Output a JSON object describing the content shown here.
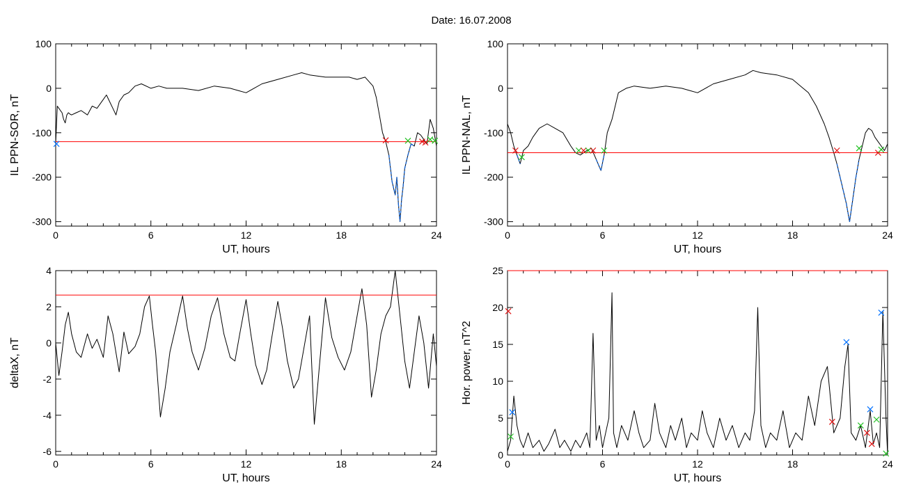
{
  "figure": {
    "title": "Date:  16.07.2008"
  },
  "chart_data": [
    {
      "type": "line",
      "ylabel": "IL PPN-SOR, nT",
      "xlabel": "UT, hours",
      "xlim": [
        0,
        24
      ],
      "ylim": [
        -310,
        100
      ],
      "xticks": [
        "0",
        "6",
        "12",
        "18",
        "24"
      ],
      "xtick_values": [
        0,
        6,
        12,
        18,
        24
      ],
      "yticks": [
        "-300",
        "-200",
        "-100",
        "0",
        "100"
      ],
      "ytick_values": [
        -300,
        -200,
        -100,
        0,
        100
      ],
      "threshold": {
        "value": -120,
        "color": "#ff0000"
      },
      "series": [
        {
          "color": "#000000",
          "x": [
            0.0,
            0.1,
            0.2,
            0.3,
            0.4,
            0.5,
            0.6,
            0.7,
            0.8,
            0.9,
            1.0,
            1.3,
            1.6,
            2.0,
            2.3,
            2.6,
            3.0,
            3.2,
            3.4,
            3.6,
            3.8,
            4.0,
            4.3,
            4.6,
            5.0,
            5.4,
            6.0,
            6.5,
            7.0,
            8.0,
            9.0,
            10.0,
            11.0,
            11.5,
            12.0,
            12.5,
            13.0,
            14.0,
            15.0,
            15.5,
            16.0,
            17.0,
            18.0,
            18.5,
            19.0,
            19.5,
            20.0,
            20.2,
            20.4,
            20.6,
            20.8,
            21.0,
            21.2,
            21.4,
            21.5,
            21.6,
            21.7,
            21.8,
            21.9,
            22.0,
            22.2,
            22.4,
            22.6,
            22.8,
            23.0,
            23.2,
            23.4,
            23.6,
            23.8,
            24.0
          ],
          "y": [
            -125,
            -40,
            -45,
            -50,
            -55,
            -70,
            -78,
            -60,
            -55,
            -58,
            -60,
            -55,
            -50,
            -60,
            -40,
            -45,
            -25,
            -15,
            -30,
            -45,
            -60,
            -30,
            -15,
            -10,
            5,
            10,
            0,
            5,
            0,
            0,
            -5,
            5,
            0,
            -5,
            -10,
            0,
            10,
            20,
            30,
            35,
            30,
            25,
            25,
            25,
            20,
            25,
            5,
            -20,
            -60,
            -100,
            -120,
            -150,
            -210,
            -240,
            -200,
            -260,
            -300,
            -250,
            -220,
            -180,
            -150,
            -125,
            -130,
            -100,
            -105,
            -115,
            -125,
            -70,
            -90,
            -130
          ]
        }
      ],
      "markers": [
        {
          "x": 0.05,
          "y": -125,
          "color": "#0070ff"
        },
        {
          "x": 20.8,
          "y": -117,
          "color": "#e01010"
        },
        {
          "x": 22.2,
          "y": -118,
          "color": "#20c020"
        },
        {
          "x": 23.1,
          "y": -120,
          "color": "#e01010"
        },
        {
          "x": 23.3,
          "y": -122,
          "color": "#e01010"
        },
        {
          "x": 23.6,
          "y": -115,
          "color": "#20c020"
        },
        {
          "x": 23.9,
          "y": -118,
          "color": "#20c020"
        }
      ]
    },
    {
      "type": "line",
      "ylabel": "IL PPN-NAL, nT",
      "xlabel": "UT, hours",
      "xlim": [
        0,
        24
      ],
      "ylim": [
        -310,
        100
      ],
      "xticks": [
        "0",
        "6",
        "12",
        "18",
        "24"
      ],
      "xtick_values": [
        0,
        6,
        12,
        18,
        24
      ],
      "yticks": [
        "-300",
        "-200",
        "-100",
        "0",
        "100"
      ],
      "ytick_values": [
        -300,
        -200,
        -100,
        0,
        100
      ],
      "threshold": {
        "value": -145,
        "color": "#ff0000"
      },
      "series": [
        {
          "color": "#000000",
          "x": [
            0.0,
            0.2,
            0.4,
            0.6,
            0.8,
            1.0,
            1.3,
            1.6,
            2.0,
            2.5,
            3.0,
            3.5,
            4.0,
            4.3,
            4.6,
            5.0,
            5.3,
            5.6,
            5.9,
            6.1,
            6.3,
            6.6,
            7.0,
            7.5,
            8.0,
            9.0,
            10.0,
            11.0,
            11.5,
            12.0,
            12.5,
            13.0,
            14.0,
            15.0,
            15.5,
            16.0,
            17.0,
            18.0,
            18.5,
            19.0,
            19.5,
            20.0,
            20.3,
            20.6,
            20.8,
            21.0,
            21.2,
            21.4,
            21.6,
            21.8,
            22.0,
            22.2,
            22.4,
            22.6,
            22.8,
            23.0,
            23.2,
            23.4,
            23.6,
            23.8,
            24.0
          ],
          "y": [
            -80,
            -100,
            -130,
            -150,
            -170,
            -140,
            -130,
            -110,
            -90,
            -80,
            -90,
            -100,
            -130,
            -145,
            -150,
            -140,
            -135,
            -160,
            -185,
            -150,
            -100,
            -70,
            -10,
            0,
            5,
            0,
            5,
            0,
            -5,
            -10,
            0,
            10,
            20,
            30,
            40,
            35,
            30,
            20,
            5,
            -10,
            -40,
            -80,
            -110,
            -145,
            -170,
            -200,
            -230,
            -260,
            -300,
            -250,
            -200,
            -160,
            -130,
            -100,
            -90,
            -95,
            -110,
            -120,
            -130,
            -140,
            -125
          ]
        }
      ],
      "markers": [
        {
          "x": 0.5,
          "y": -140,
          "color": "#e01010"
        },
        {
          "x": 0.9,
          "y": -155,
          "color": "#20c020"
        },
        {
          "x": 4.5,
          "y": -140,
          "color": "#20c020"
        },
        {
          "x": 4.8,
          "y": -140,
          "color": "#e01010"
        },
        {
          "x": 5.1,
          "y": -140,
          "color": "#20c020"
        },
        {
          "x": 5.4,
          "y": -140,
          "color": "#e01010"
        },
        {
          "x": 6.1,
          "y": -140,
          "color": "#20c020"
        },
        {
          "x": 20.8,
          "y": -140,
          "color": "#e01010"
        },
        {
          "x": 22.2,
          "y": -135,
          "color": "#20c020"
        },
        {
          "x": 23.4,
          "y": -145,
          "color": "#e01010"
        },
        {
          "x": 23.6,
          "y": -138,
          "color": "#20c020"
        }
      ]
    },
    {
      "type": "line",
      "ylabel": "deltaX, nT",
      "xlabel": "UT, hours",
      "xlim": [
        0,
        24
      ],
      "ylim": [
        -6.2,
        4
      ],
      "xticks": [
        "0",
        "6",
        "12",
        "18",
        "24"
      ],
      "xtick_values": [
        0,
        6,
        12,
        18,
        24
      ],
      "yticks": [
        "-6",
        "-4",
        "-2",
        "0",
        "2",
        "4"
      ],
      "ytick_values": [
        -6,
        -4,
        -2,
        0,
        2,
        4
      ],
      "threshold": {
        "value": 2.65,
        "color": "#ff0000"
      },
      "series": [
        {
          "color": "#000000",
          "x": [
            0.0,
            0.2,
            0.4,
            0.6,
            0.8,
            1.0,
            1.3,
            1.6,
            2.0,
            2.3,
            2.6,
            3.0,
            3.3,
            3.6,
            4.0,
            4.3,
            4.6,
            5.0,
            5.3,
            5.6,
            5.9,
            6.1,
            6.3,
            6.6,
            6.9,
            7.2,
            7.6,
            8.0,
            8.3,
            8.6,
            9.0,
            9.4,
            9.8,
            10.2,
            10.6,
            11.0,
            11.3,
            11.6,
            12.0,
            12.3,
            12.6,
            13.0,
            13.3,
            13.6,
            14.0,
            14.3,
            14.6,
            15.0,
            15.3,
            15.6,
            16.0,
            16.3,
            16.6,
            17.0,
            17.4,
            17.8,
            18.2,
            18.6,
            19.0,
            19.3,
            19.6,
            19.9,
            20.2,
            20.5,
            20.8,
            21.1,
            21.4,
            21.7,
            22.0,
            22.3,
            22.6,
            22.9,
            23.2,
            23.5,
            23.8,
            24.0
          ],
          "y": [
            0.0,
            -1.8,
            -0.5,
            1.0,
            1.7,
            0.5,
            -0.5,
            -0.8,
            0.5,
            -0.3,
            0.2,
            -0.8,
            1.5,
            0.5,
            -1.6,
            0.6,
            -0.6,
            -0.2,
            0.5,
            2.0,
            2.6,
            1.0,
            -0.5,
            -4.1,
            -2.5,
            -0.5,
            1.0,
            2.6,
            0.8,
            -0.5,
            -1.5,
            -0.3,
            1.5,
            2.5,
            0.5,
            -0.8,
            -1.0,
            0.5,
            2.4,
            0.5,
            -1.2,
            -2.3,
            -1.5,
            0.2,
            2.3,
            0.8,
            -1.0,
            -2.5,
            -2.0,
            -0.5,
            1.5,
            -4.5,
            -1.5,
            2.5,
            0.3,
            -0.8,
            -1.5,
            -0.5,
            1.5,
            3.0,
            1.0,
            -3.0,
            -1.5,
            0.5,
            1.5,
            2.0,
            4.0,
            1.5,
            -1.0,
            -2.5,
            -0.5,
            1.5,
            0.0,
            -2.5,
            0.5,
            -1.3
          ]
        }
      ],
      "markers": []
    },
    {
      "type": "line",
      "ylabel": "Hor. power, nT^2",
      "xlabel": "UT, hours",
      "xlim": [
        0,
        24
      ],
      "ylim": [
        0,
        25
      ],
      "xticks": [
        "0",
        "6",
        "12",
        "18",
        "24"
      ],
      "xtick_values": [
        0,
        6,
        12,
        18,
        24
      ],
      "yticks": [
        "0",
        "5",
        "10",
        "15",
        "20",
        "25"
      ],
      "ytick_values": [
        0,
        5,
        10,
        15,
        20,
        25
      ],
      "threshold": {
        "value": 25,
        "color": "#ff0000"
      },
      "series": [
        {
          "color": "#000000",
          "x": [
            0.0,
            0.2,
            0.4,
            0.6,
            0.8,
            1.0,
            1.3,
            1.6,
            2.0,
            2.3,
            2.6,
            3.0,
            3.3,
            3.6,
            4.0,
            4.3,
            4.6,
            5.0,
            5.2,
            5.4,
            5.6,
            5.8,
            6.0,
            6.2,
            6.4,
            6.6,
            6.7,
            6.9,
            7.2,
            7.6,
            8.0,
            8.3,
            8.6,
            9.0,
            9.3,
            9.6,
            10.0,
            10.3,
            10.6,
            11.0,
            11.3,
            11.6,
            12.0,
            12.3,
            12.6,
            13.0,
            13.4,
            13.8,
            14.2,
            14.6,
            15.0,
            15.3,
            15.6,
            15.8,
            16.0,
            16.3,
            16.6,
            17.0,
            17.4,
            17.8,
            18.2,
            18.6,
            19.0,
            19.4,
            19.8,
            20.2,
            20.6,
            21.0,
            21.3,
            21.5,
            21.7,
            22.0,
            22.3,
            22.6,
            22.9,
            23.1,
            23.3,
            23.5,
            23.7,
            23.9,
            24.0
          ],
          "y": [
            0.5,
            2.0,
            8.0,
            4.0,
            2.0,
            1.0,
            3.0,
            1.0,
            2.0,
            0.5,
            1.5,
            3.5,
            1.0,
            2.0,
            0.5,
            2.0,
            1.0,
            3.0,
            1.0,
            16.5,
            2.0,
            4.0,
            1.0,
            3.0,
            5.0,
            22.0,
            3.0,
            1.0,
            4.0,
            2.0,
            6.0,
            3.0,
            1.0,
            2.0,
            7.0,
            3.0,
            1.0,
            4.0,
            2.0,
            5.0,
            1.0,
            3.0,
            2.0,
            6.0,
            3.0,
            1.0,
            5.0,
            2.0,
            4.0,
            1.0,
            3.0,
            2.0,
            6.0,
            20.0,
            4.0,
            1.0,
            3.0,
            2.0,
            6.0,
            1.0,
            3.0,
            2.0,
            8.0,
            4.0,
            10.0,
            12.0,
            3.0,
            5.0,
            12.0,
            15.0,
            3.0,
            2.0,
            4.0,
            1.0,
            6.0,
            1.5,
            3.0,
            1.0,
            19.5,
            5.0,
            0.0
          ]
        }
      ],
      "markers": [
        {
          "x": 0.05,
          "y": 19.5,
          "color": "#e01010"
        },
        {
          "x": 0.2,
          "y": 2.5,
          "color": "#20c020"
        },
        {
          "x": 0.3,
          "y": 5.8,
          "color": "#0070ff"
        },
        {
          "x": 20.5,
          "y": 4.5,
          "color": "#e01010"
        },
        {
          "x": 21.4,
          "y": 15.3,
          "color": "#0070ff"
        },
        {
          "x": 22.3,
          "y": 4.0,
          "color": "#20c020"
        },
        {
          "x": 22.7,
          "y": 3.0,
          "color": "#e01010"
        },
        {
          "x": 22.9,
          "y": 6.2,
          "color": "#0070ff"
        },
        {
          "x": 23.0,
          "y": 1.5,
          "color": "#e01010"
        },
        {
          "x": 23.3,
          "y": 4.8,
          "color": "#20c020"
        },
        {
          "x": 23.6,
          "y": 19.3,
          "color": "#0070ff"
        },
        {
          "x": 23.9,
          "y": 0.2,
          "color": "#20c020"
        }
      ]
    }
  ]
}
